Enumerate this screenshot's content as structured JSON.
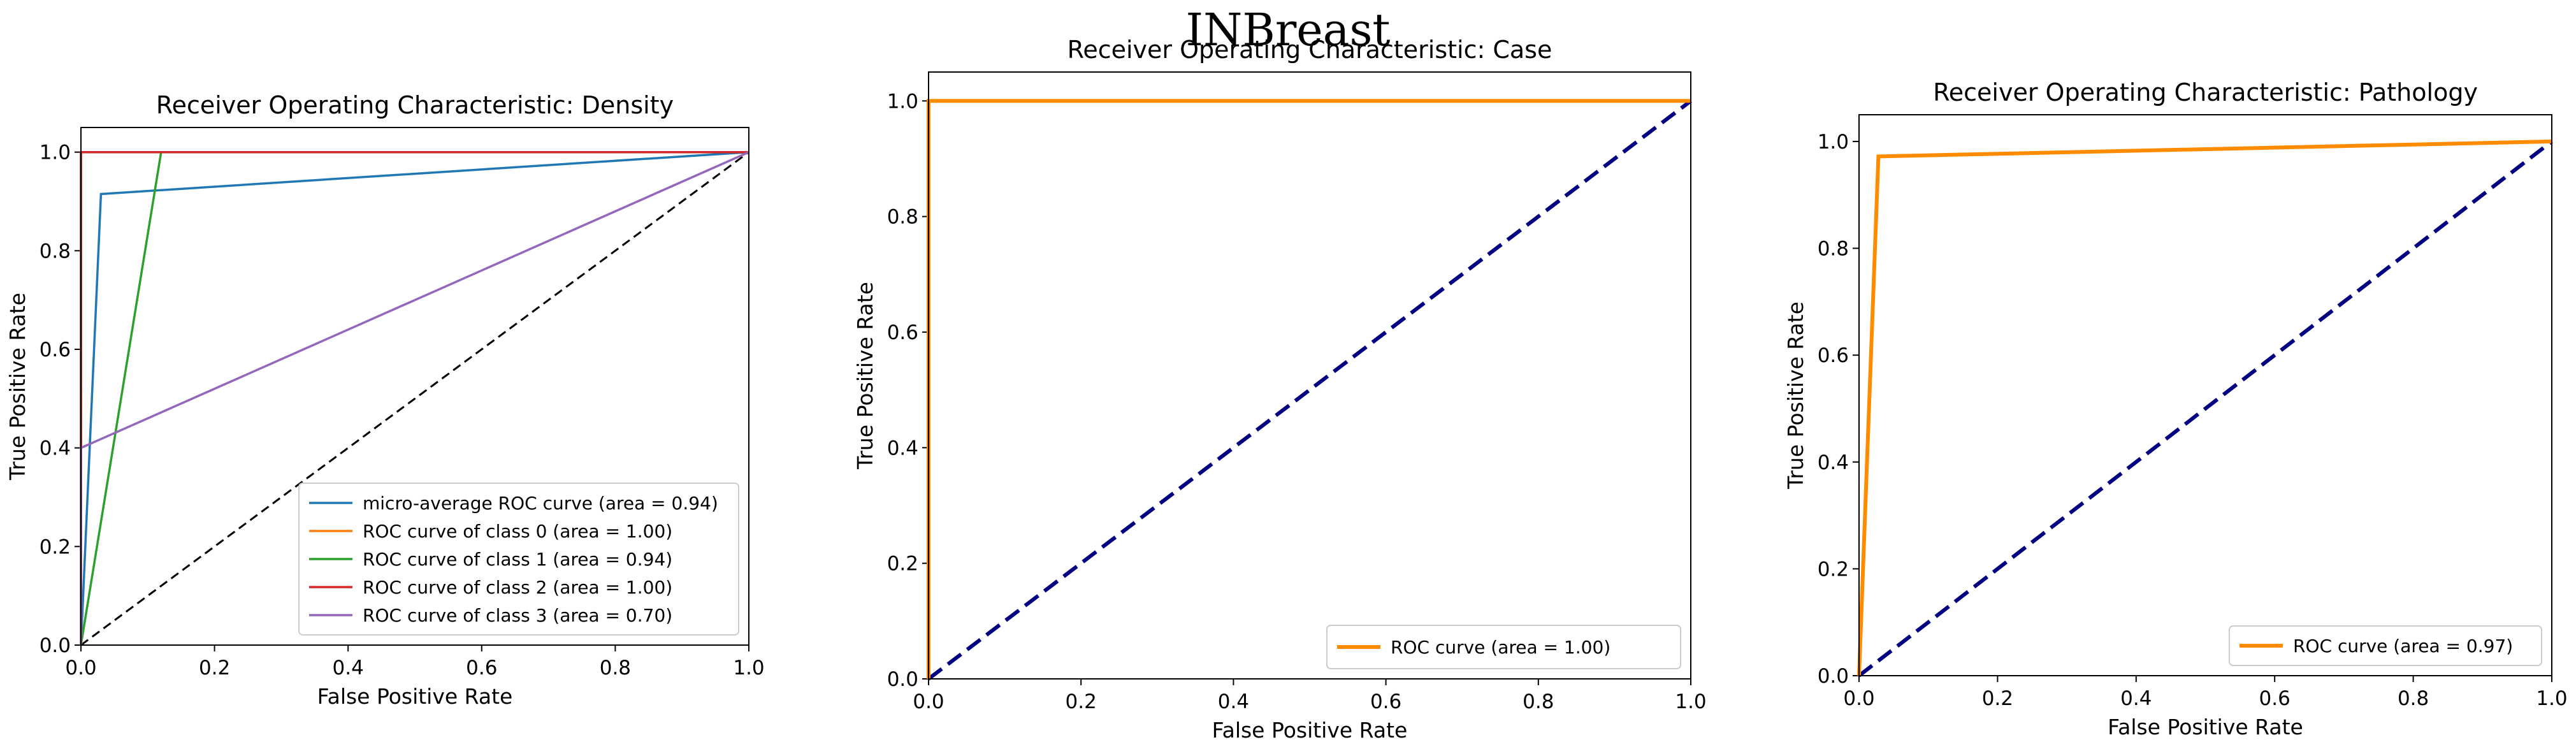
{
  "figure_title": "INBreast",
  "colors": {
    "micro": "#1f77b4",
    "class0": "#ff7f0e",
    "class1": "#2ca02c",
    "class2": "#d62728",
    "class3": "#9467bd",
    "roc": "#ff8c00",
    "chance_navy": "#000080",
    "chance_black": "#000000"
  },
  "chart_data": [
    {
      "type": "line",
      "title": "Receiver Operating Characteristic: Density",
      "xlabel": "False Positive Rate",
      "ylabel": "True Positive Rate",
      "xlim": [
        0,
        1
      ],
      "ylim": [
        0,
        1.05
      ],
      "xticks": [
        0.0,
        0.2,
        0.4,
        0.6,
        0.8,
        1.0
      ],
      "yticks": [
        0.0,
        0.2,
        0.4,
        0.6,
        0.8,
        1.0
      ],
      "xtick_labels": [
        "0.0",
        "0.2",
        "0.4",
        "0.6",
        "0.8",
        "1.0"
      ],
      "ytick_labels": [
        "0.0",
        "0.2",
        "0.4",
        "0.6",
        "0.8",
        "1.0"
      ],
      "legend_position": "lower-right",
      "chance_line": {
        "x": [
          0,
          1
        ],
        "y": [
          0,
          1
        ],
        "color": "#000000",
        "dash": "dashed"
      },
      "series": [
        {
          "name": "micro-average ROC curve (area = 0.94)",
          "color": "#1f77b4",
          "x": [
            0,
            0.03,
            1
          ],
          "y": [
            0,
            0.915,
            1
          ]
        },
        {
          "name": "ROC curve of class 0 (area = 1.00)",
          "color": "#ff7f0e",
          "x": [
            0,
            0,
            1
          ],
          "y": [
            0,
            1,
            1
          ]
        },
        {
          "name": "ROC curve of class 1 (area = 0.94)",
          "color": "#2ca02c",
          "x": [
            0,
            0.12,
            1
          ],
          "y": [
            0,
            1,
            1
          ]
        },
        {
          "name": "ROC curve of class 2 (area = 1.00)",
          "color": "#d62728",
          "x": [
            0,
            0,
            1
          ],
          "y": [
            0,
            1,
            1
          ]
        },
        {
          "name": "ROC curve of class 3 (area = 0.70)",
          "color": "#9467bd",
          "x": [
            0,
            0,
            1
          ],
          "y": [
            0,
            0.4,
            1
          ]
        }
      ]
    },
    {
      "type": "line",
      "title": "Receiver Operating Characteristic: Case",
      "xlabel": "False Positive Rate",
      "ylabel": "True Positive Rate",
      "xlim": [
        0,
        1
      ],
      "ylim": [
        0,
        1.05
      ],
      "xticks": [
        0.0,
        0.2,
        0.4,
        0.6,
        0.8,
        1.0
      ],
      "yticks": [
        0.0,
        0.2,
        0.4,
        0.6,
        0.8,
        1.0
      ],
      "xtick_labels": [
        "0.0",
        "0.2",
        "0.4",
        "0.6",
        "0.8",
        "1.0"
      ],
      "ytick_labels": [
        "0.0",
        "0.2",
        "0.4",
        "0.6",
        "0.8",
        "1.0"
      ],
      "legend_position": "lower-right",
      "chance_line": {
        "x": [
          0,
          1
        ],
        "y": [
          0,
          1
        ],
        "color": "#000080",
        "dash": "dashed"
      },
      "series": [
        {
          "name": "ROC curve (area = 1.00)",
          "color": "#ff8c00",
          "x": [
            0,
            0,
            1
          ],
          "y": [
            0,
            1,
            1
          ]
        }
      ]
    },
    {
      "type": "line",
      "title": "Receiver Operating Characteristic: Pathology",
      "xlabel": "False Positive Rate",
      "ylabel": "True Positive Rate",
      "xlim": [
        0,
        1
      ],
      "ylim": [
        0,
        1.05
      ],
      "xticks": [
        0.0,
        0.2,
        0.4,
        0.6,
        0.8,
        1.0
      ],
      "yticks": [
        0.0,
        0.2,
        0.4,
        0.6,
        0.8,
        1.0
      ],
      "xtick_labels": [
        "0.0",
        "0.2",
        "0.4",
        "0.6",
        "0.8",
        "1.0"
      ],
      "ytick_labels": [
        "0.0",
        "0.2",
        "0.4",
        "0.6",
        "0.8",
        "1.0"
      ],
      "legend_position": "lower-right",
      "chance_line": {
        "x": [
          0,
          1
        ],
        "y": [
          0,
          1
        ],
        "color": "#000080",
        "dash": "dashed"
      },
      "series": [
        {
          "name": "ROC curve (area = 0.97)",
          "color": "#ff8c00",
          "x": [
            0,
            0.028,
            1
          ],
          "y": [
            0,
            0.972,
            1
          ]
        }
      ]
    }
  ]
}
